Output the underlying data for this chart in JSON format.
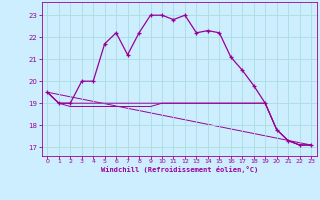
{
  "xlabel": "Windchill (Refroidissement éolien,°C)",
  "background_color": "#cceeff",
  "grid_color": "#aadddd",
  "line_color": "#990099",
  "xlim": [
    -0.5,
    23.5
  ],
  "ylim": [
    16.6,
    23.6
  ],
  "yticks": [
    17,
    18,
    19,
    20,
    21,
    22,
    23
  ],
  "xticks": [
    0,
    1,
    2,
    3,
    4,
    5,
    6,
    7,
    8,
    9,
    10,
    11,
    12,
    13,
    14,
    15,
    16,
    17,
    18,
    19,
    20,
    21,
    22,
    23
  ],
  "windchill_x": [
    0,
    1,
    2,
    3,
    4,
    5,
    6,
    7,
    8,
    9,
    10,
    11,
    12,
    13,
    14,
    15,
    16,
    17,
    18,
    19,
    20,
    21,
    22,
    23
  ],
  "windchill_y": [
    19.5,
    19.0,
    19.0,
    20.0,
    20.0,
    21.7,
    22.2,
    21.2,
    22.2,
    23.0,
    23.0,
    22.8,
    23.0,
    22.2,
    22.3,
    22.2,
    21.1,
    20.5,
    19.8,
    19.0,
    17.8,
    17.3,
    17.1,
    17.1
  ],
  "temp_line1_x": [
    0,
    1,
    2,
    3,
    4,
    5,
    6,
    7,
    8,
    9,
    10,
    11,
    12,
    13,
    14,
    15,
    16,
    17,
    18,
    19,
    20,
    21,
    22,
    23
  ],
  "temp_line1_y": [
    19.5,
    19.0,
    19.0,
    19.0,
    19.0,
    19.0,
    19.0,
    19.0,
    19.0,
    19.0,
    19.0,
    19.0,
    19.0,
    19.0,
    19.0,
    19.0,
    19.0,
    19.0,
    19.0,
    19.0,
    17.8,
    17.3,
    17.1,
    17.1
  ],
  "temp_line2_x": [
    0,
    1,
    2,
    3,
    4,
    5,
    6,
    7,
    8,
    9,
    10,
    11,
    12,
    13,
    14,
    15,
    16,
    17,
    18,
    19,
    20,
    21,
    22,
    23
  ],
  "temp_line2_y": [
    19.5,
    19.0,
    18.85,
    18.85,
    18.85,
    18.85,
    18.85,
    18.85,
    18.85,
    18.85,
    19.0,
    19.0,
    19.0,
    19.0,
    19.0,
    19.0,
    19.0,
    19.0,
    19.0,
    19.0,
    17.8,
    17.3,
    17.1,
    17.1
  ],
  "diag_line_x": [
    0,
    23
  ],
  "diag_line_y": [
    19.5,
    17.1
  ]
}
